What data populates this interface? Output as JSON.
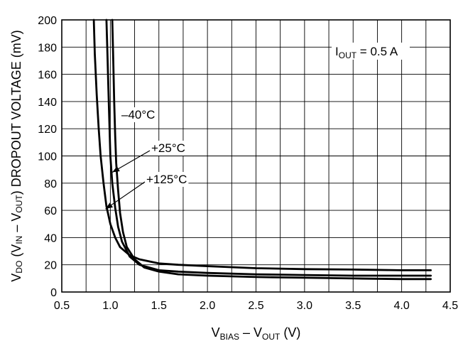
{
  "chart_data": {
    "type": "line",
    "xlabel": {
      "parts": [
        {
          "t": "V"
        },
        {
          "t": "BIAS",
          "sub": true
        },
        {
          "t": " – V"
        },
        {
          "t": "OUT",
          "sub": true
        },
        {
          "t": " (V)"
        }
      ]
    },
    "ylabel": {
      "parts": [
        {
          "t": "V"
        },
        {
          "t": "DO",
          "sub": true
        },
        {
          "t": " (V"
        },
        {
          "t": "IN",
          "sub": true
        },
        {
          "t": " – V"
        },
        {
          "t": "OUT",
          "sub": true
        },
        {
          "t": ") DROPOUT VOLTAGE (mV)"
        }
      ]
    },
    "xlim": [
      0.5,
      4.5
    ],
    "ylim": [
      0,
      200
    ],
    "x_ticks": [
      0.5,
      1.0,
      1.5,
      2.0,
      2.5,
      3.0,
      3.5,
      4.0,
      4.5
    ],
    "x_tick_labels": [
      "0.5",
      "1.0",
      "1.5",
      "2.0",
      "2.5",
      "3.0",
      "3.5",
      "4.0",
      "4.5"
    ],
    "y_ticks": [
      0,
      20,
      40,
      60,
      80,
      100,
      120,
      140,
      160,
      180,
      200
    ],
    "y_tick_labels": [
      "0",
      "20",
      "40",
      "60",
      "80",
      "100",
      "120",
      "140",
      "160",
      "180",
      "200"
    ],
    "x_minor_step": 0.25,
    "grid": true,
    "condition": {
      "parts": [
        {
          "t": "I"
        },
        {
          "t": "OUT",
          "sub": true
        },
        {
          "t": " = 0.5 A"
        }
      ]
    },
    "series": [
      {
        "name": "+125°C",
        "x": [
          0.83,
          0.84,
          0.86,
          0.88,
          0.9,
          0.93,
          0.96,
          1.0,
          1.05,
          1.1,
          1.2,
          1.3,
          1.5,
          1.7,
          2.0,
          2.5,
          3.0,
          3.5,
          4.0,
          4.3
        ],
        "y": [
          200,
          175,
          145,
          120,
          100,
          80,
          63,
          50,
          40,
          33,
          27,
          24,
          21,
          20,
          19,
          17.5,
          16.8,
          16.5,
          16,
          16
        ]
      },
      {
        "name": "+25°C",
        "x": [
          0.96,
          0.97,
          0.98,
          0.99,
          1.0,
          1.02,
          1.05,
          1.08,
          1.12,
          1.2,
          1.3,
          1.5,
          1.7,
          2.0,
          2.5,
          3.0,
          3.5,
          4.0,
          4.3
        ],
        "y": [
          200,
          175,
          150,
          125,
          100,
          80,
          62,
          48,
          37,
          26,
          20,
          16,
          15,
          14,
          13,
          12.5,
          12,
          12,
          12
        ]
      },
      {
        "name": "–40°C",
        "x": [
          1.02,
          1.03,
          1.04,
          1.05,
          1.06,
          1.08,
          1.1,
          1.13,
          1.17,
          1.25,
          1.35,
          1.5,
          1.7,
          2.0,
          2.5,
          3.0,
          3.5,
          4.0,
          4.3
        ],
        "y": [
          200,
          170,
          140,
          115,
          95,
          75,
          58,
          44,
          33,
          24,
          18,
          15,
          13,
          12,
          11,
          10.5,
          10,
          9.5,
          9.5
        ]
      }
    ],
    "annotations": [
      {
        "text": "–40°C",
        "series": "–40°C"
      },
      {
        "text": "+25°C",
        "series": "+25°C",
        "arrow_to": {
          "x": 1.02,
          "y": 88
        }
      },
      {
        "text": "+125°C",
        "series": "+125°C",
        "arrow_to": {
          "x": 0.95,
          "y": 61
        }
      }
    ]
  }
}
